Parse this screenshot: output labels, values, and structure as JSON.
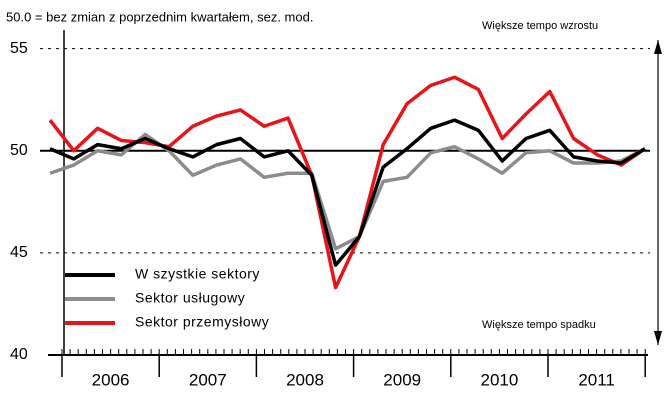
{
  "chart_data": {
    "type": "line",
    "note": "50.0 = bez zmian z poprzednim kwartałem, sez. mod.",
    "annotations": [
      "Większe tempo wzrostu",
      "Większe tempo spadku"
    ],
    "categories": [
      null,
      null,
      null,
      null,
      null,
      null,
      null,
      null,
      null,
      null,
      null,
      null,
      null,
      null,
      null,
      null,
      null,
      null,
      null,
      null,
      null,
      null,
      null,
      null,
      null,
      null
    ],
    "year_labels": [
      "2006",
      "2007",
      "2008",
      "2009",
      "2010",
      "2011"
    ],
    "ylim": [
      40,
      56.5
    ],
    "yticks": [
      40,
      45,
      50,
      55
    ],
    "series": [
      {
        "name": "W szystkie sektory",
        "color": "#000000",
        "values": [
          50.1,
          49.6,
          50.3,
          50.1,
          50.6,
          50.1,
          49.7,
          50.3,
          50.6,
          49.7,
          50.0,
          48.8,
          44.4,
          45.8,
          49.2,
          50.1,
          51.1,
          51.5,
          51.0,
          49.5,
          50.6,
          51.0,
          49.7,
          49.5,
          49.4,
          50.1
        ]
      },
      {
        "name": "Sektor usługowy",
        "color": "#8c8c8c",
        "values": [
          48.9,
          49.3,
          50.0,
          49.8,
          50.8,
          50.0,
          48.8,
          49.3,
          49.6,
          48.7,
          48.9,
          48.9,
          45.2,
          45.8,
          48.5,
          48.7,
          49.9,
          50.2,
          49.6,
          48.9,
          49.9,
          50.0,
          49.4,
          49.4,
          49.5,
          50.1
        ]
      },
      {
        "name": "Sektor przemysłowy",
        "color": "#e8141a",
        "values": [
          51.5,
          50.0,
          51.1,
          50.5,
          50.4,
          50.2,
          51.2,
          51.7,
          52.0,
          51.2,
          51.6,
          48.8,
          43.3,
          45.8,
          50.3,
          52.3,
          53.2,
          53.6,
          53.0,
          50.6,
          51.8,
          52.9,
          50.6,
          49.8,
          49.3,
          50.1
        ]
      }
    ]
  }
}
